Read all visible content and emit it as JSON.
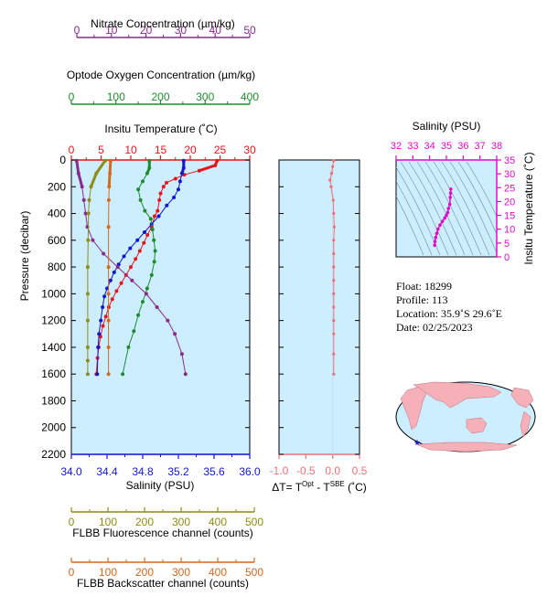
{
  "colors": {
    "nitrate": "#8B2A8B",
    "oxygen": "#1E8B2E",
    "temperature": "#E8141B",
    "salinity": "#1414D2",
    "fluorescence": "#8C8C19",
    "backscatter": "#D2691E",
    "delta": "#F07078",
    "ts": "#E10AC8",
    "panel_bg": "#CCEEFF"
  },
  "axes": {
    "nitrate": {
      "label": "Nitrate Concentration (µm/kg)",
      "ticks": [
        "0",
        "10",
        "20",
        "30",
        "40",
        "50"
      ]
    },
    "oxygen": {
      "label": "Optode Oxygen Concentration (µm/kg)",
      "ticks": [
        "0",
        "100",
        "200",
        "300",
        "400"
      ]
    },
    "temperature": {
      "label": "Insitu Temperature (˚C)",
      "ticks": [
        "0",
        "5",
        "10",
        "15",
        "20",
        "25",
        "30"
      ]
    },
    "salinity": {
      "label": "Salinity (PSU)",
      "ticks": [
        "34.0",
        "34.4",
        "34.8",
        "35.2",
        "35.6",
        "36.0"
      ]
    },
    "fluorescence": {
      "label": "FLBB Fluorescence channel (counts)",
      "ticks": [
        "0",
        "100",
        "200",
        "300",
        "400",
        "500"
      ]
    },
    "backscatter": {
      "label": "FLBB Backscatter channel (counts)",
      "ticks": [
        "0",
        "100",
        "200",
        "300",
        "400",
        "500"
      ]
    },
    "pressure": {
      "label": "Pressure (decibar)",
      "ticks": [
        "0",
        "200",
        "400",
        "600",
        "800",
        "1000",
        "1200",
        "1400",
        "1600",
        "1800",
        "2000",
        "2200"
      ]
    },
    "delta": {
      "label_main": "ΔT= T",
      "label_sup1": "Opt",
      "label_mid": " - T",
      "label_sup2": "SBE",
      "label_end": " (˚C)",
      "ticks": [
        "-1.0",
        "-0.5",
        "0.0",
        "0.5"
      ]
    },
    "ts_salinity": {
      "label": "Salinity (PSU)",
      "ticks": [
        "32",
        "33",
        "34",
        "35",
        "36",
        "37",
        "38"
      ]
    },
    "ts_temperature": {
      "label": "Insitu Temperature (˚C)",
      "ticks": [
        "0",
        "5",
        "10",
        "15",
        "20",
        "25",
        "30",
        "35"
      ]
    }
  },
  "info": {
    "float": "Float:  18299",
    "profile": "Profile:  113",
    "location": "Location:  35.9˚S  29.6˚E",
    "date": "Date:  02/25/2023"
  },
  "chart_data": [
    {
      "type": "line",
      "title": "",
      "ylabel": "Pressure (decibar)",
      "ylim": [
        2200,
        0
      ],
      "series": [
        {
          "name": "Insitu Temperature (˚C)",
          "axis": "temperature",
          "xlim": [
            0,
            30
          ],
          "x": [
            24.5,
            24.2,
            21.5,
            19.0,
            17.5,
            16.0,
            15.5,
            15.0,
            14.8,
            14.5,
            14.0,
            13.5,
            12.8,
            12.2,
            11.5,
            10.8,
            10.0,
            9.2,
            8.4,
            7.6,
            6.9,
            6.3,
            5.8,
            5.3,
            4.9,
            4.6,
            4.4,
            4.2
          ],
          "y": [
            5,
            40,
            80,
            110,
            140,
            170,
            200,
            250,
            300,
            380,
            420,
            500,
            560,
            620,
            680,
            740,
            800,
            860,
            920,
            980,
            1040,
            1100,
            1170,
            1240,
            1320,
            1400,
            1480,
            1600
          ]
        },
        {
          "name": "Salinity (PSU)",
          "axis": "salinity",
          "xlim": [
            34.0,
            36.0
          ],
          "x": [
            35.26,
            35.26,
            35.24,
            35.22,
            35.2,
            35.15,
            35.07,
            34.98,
            34.9,
            34.82,
            34.74,
            34.66,
            34.59,
            34.53,
            34.48,
            34.44,
            34.4,
            34.37,
            34.35,
            34.33,
            34.31,
            34.3,
            34.29
          ],
          "y": [
            5,
            60,
            100,
            160,
            220,
            280,
            340,
            420,
            480,
            540,
            600,
            660,
            720,
            780,
            840,
            900,
            960,
            1020,
            1100,
            1200,
            1300,
            1400,
            1600
          ]
        },
        {
          "name": "Optode Oxygen Concentration (µm/kg)",
          "axis": "oxygen",
          "xlim": [
            0,
            400
          ],
          "x": [
            175,
            175,
            170,
            160,
            150,
            155,
            165,
            178,
            182,
            185,
            188,
            186,
            180,
            170,
            160,
            150,
            140,
            128,
            115
          ],
          "y": [
            5,
            60,
            100,
            160,
            220,
            300,
            380,
            440,
            520,
            600,
            680,
            760,
            860,
            960,
            1060,
            1160,
            1280,
            1400,
            1600
          ]
        },
        {
          "name": "Nitrate Concentration (µm/kg)",
          "axis": "nitrate",
          "xlim": [
            0,
            50
          ],
          "x": [
            1.5,
            2.0,
            3.0,
            3.5,
            4.0,
            4.5,
            6.0,
            9.0,
            13.0,
            17.0,
            21.0,
            24.0,
            27.0,
            29.0,
            31.0,
            32.0
          ],
          "y": [
            5,
            100,
            200,
            300,
            400,
            500,
            600,
            700,
            800,
            900,
            1000,
            1100,
            1200,
            1300,
            1450,
            1600
          ]
        },
        {
          "name": "FLBB Fluorescence channel (counts)",
          "axis": "fluorescence",
          "xlim": [
            0,
            500
          ],
          "x": [
            95,
            70,
            55,
            50,
            48,
            47,
            46,
            46,
            46,
            46,
            46,
            46
          ],
          "y": [
            5,
            100,
            200,
            300,
            400,
            600,
            800,
            1000,
            1200,
            1400,
            1500,
            1600
          ]
        },
        {
          "name": "FLBB Backscatter channel (counts)",
          "axis": "backscatter",
          "xlim": [
            0,
            500
          ],
          "x": [
            110,
            108,
            106,
            105,
            104,
            104,
            104,
            104,
            104,
            104
          ],
          "y": [
            5,
            100,
            200,
            300,
            500,
            800,
            1000,
            1200,
            1400,
            1600
          ]
        }
      ]
    },
    {
      "type": "scatter",
      "title": "",
      "xlim": [
        -1.0,
        0.5
      ],
      "ylim": [
        2200,
        0
      ],
      "x": [
        0.02,
        0.0,
        -0.02,
        -0.05,
        -0.03,
        0.01,
        0.02,
        0.03,
        0.02,
        0.02,
        0.02,
        0.02,
        0.02,
        0.02,
        0.02,
        0.02,
        0.02,
        0.02
      ],
      "y": [
        5,
        50,
        100,
        150,
        200,
        300,
        400,
        500,
        600,
        700,
        800,
        900,
        1000,
        1100,
        1200,
        1300,
        1450,
        1600
      ]
    },
    {
      "type": "line",
      "title": "",
      "xlabel": "Salinity (PSU)",
      "ylabel": "Insitu Temperature (˚C)",
      "xlim": [
        32,
        38
      ],
      "ylim": [
        0,
        35
      ],
      "x": [
        34.3,
        34.32,
        34.36,
        34.42,
        34.5,
        34.62,
        34.76,
        34.9,
        35.0,
        35.08,
        35.12,
        35.2,
        35.23,
        35.25,
        35.26
      ],
      "y": [
        4.2,
        5.5,
        7.0,
        8.5,
        10.0,
        11.5,
        12.8,
        14.0,
        15.0,
        16.0,
        17.5,
        19.0,
        21.5,
        23.0,
        24.5
      ]
    }
  ]
}
